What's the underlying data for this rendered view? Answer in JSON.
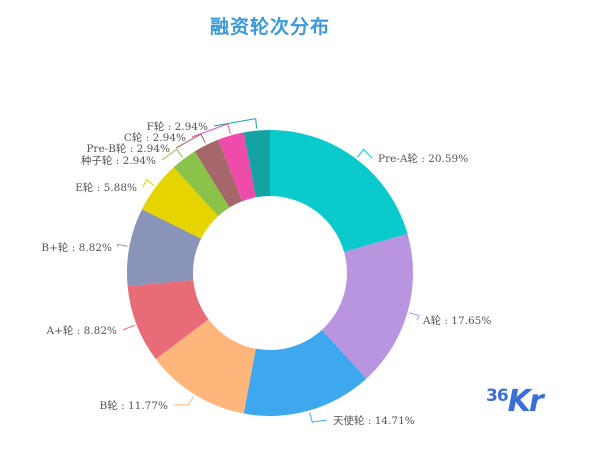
{
  "chart_data": {
    "type": "pie",
    "variant": "donut",
    "title": "融资轮次分布",
    "categories": [
      "Pre-A轮",
      "A轮",
      "天使轮",
      "B轮",
      "A+轮",
      "B+轮",
      "E轮",
      "种子轮",
      "Pre-B轮",
      "C轮",
      "F轮"
    ],
    "values": [
      20.59,
      17.65,
      14.71,
      11.77,
      8.82,
      8.82,
      5.88,
      2.94,
      2.94,
      2.94,
      2.94
    ],
    "unit": "%",
    "colors": [
      "#0ACACB",
      "#B995DF",
      "#3EA8EE",
      "#FFB67A",
      "#E86B78",
      "#8A93B8",
      "#E6D400",
      "#8BC34A",
      "#A5676A",
      "#EE4BAA",
      "#14A3A3"
    ],
    "labels": [
      "Pre-A轮 : 20.59%",
      "A轮 : 17.65%",
      "天使轮 : 14.71%",
      "B轮 : 11.77%",
      "A+轮 : 8.82%",
      "B+轮 : 8.82%",
      "E轮 : 5.88%",
      "种子轮 : 2.94%",
      "Pre-B轮 : 2.94%",
      "C轮 : 2.94%",
      "F轮 : 2.94%"
    ],
    "start_angle": "12 o'clock, clockwise",
    "legend": "none (outside labels with leader lines)"
  },
  "watermark": {
    "num": "36",
    "text": "Kr"
  }
}
